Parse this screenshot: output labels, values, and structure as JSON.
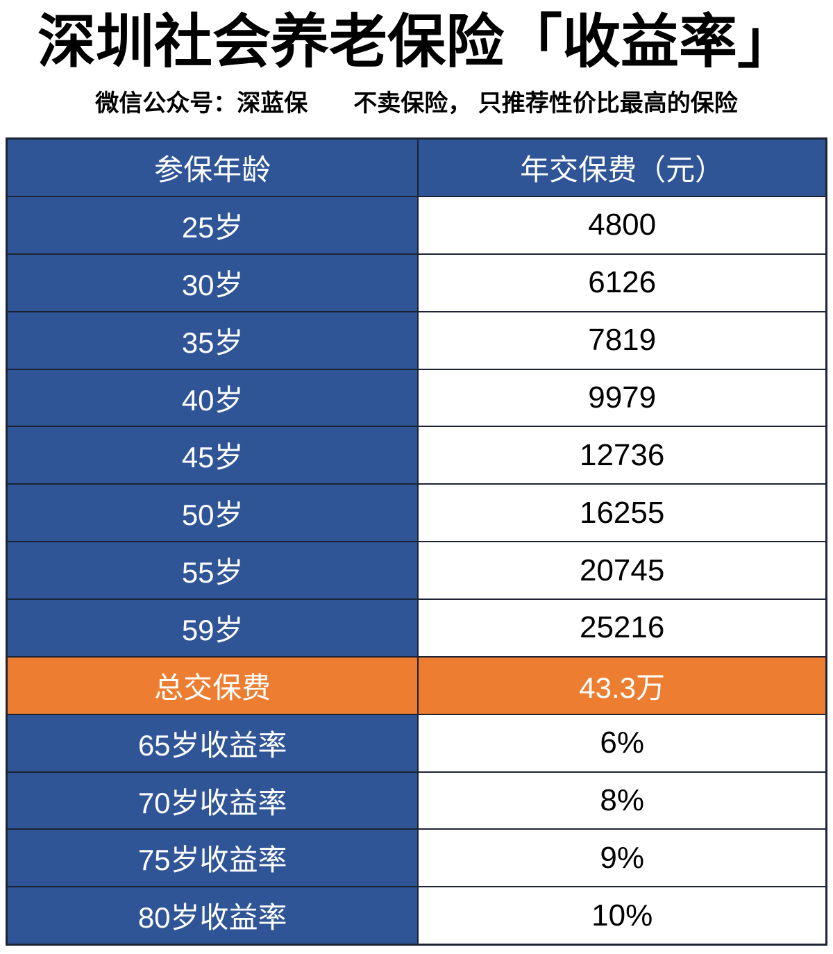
{
  "title": "深圳社会养老保险「收益率」",
  "subtitle": {
    "left": "微信公众号：深蓝保",
    "right": "不卖保险， 只推荐性价比最高的保险"
  },
  "colors": {
    "blue": "#2f5597",
    "orange": "#ed7d31",
    "border": "#1c2333"
  },
  "table": {
    "header": {
      "col1": "参保年龄",
      "col2": "年交保费（元）"
    },
    "rows": [
      {
        "label": "25岁",
        "value": "4800",
        "type": "data"
      },
      {
        "label": "30岁",
        "value": "6126",
        "type": "data"
      },
      {
        "label": "35岁",
        "value": "7819",
        "type": "data"
      },
      {
        "label": "40岁",
        "value": "9979",
        "type": "data"
      },
      {
        "label": "45岁",
        "value": "12736",
        "type": "data"
      },
      {
        "label": "50岁",
        "value": "16255",
        "type": "data"
      },
      {
        "label": "55岁",
        "value": "20745",
        "type": "data"
      },
      {
        "label": "59岁",
        "value": "25216",
        "type": "data"
      },
      {
        "label": "总交保费",
        "value": "43.3万",
        "type": "total"
      },
      {
        "label": "65岁收益率",
        "value": "6%",
        "type": "rate"
      },
      {
        "label": "70岁收益率",
        "value": "8%",
        "type": "rate"
      },
      {
        "label": "75岁收益率",
        "value": "9%",
        "type": "rate"
      },
      {
        "label": "80岁收益率",
        "value": "10%",
        "type": "rate"
      }
    ]
  },
  "chart_data": {
    "type": "table",
    "title": "深圳社会养老保险「收益率」",
    "columns": [
      "参保年龄",
      "年交保费（元）"
    ],
    "rows": [
      [
        "25岁",
        "4800"
      ],
      [
        "30岁",
        "6126"
      ],
      [
        "35岁",
        "7819"
      ],
      [
        "40岁",
        "9979"
      ],
      [
        "45岁",
        "12736"
      ],
      [
        "50岁",
        "16255"
      ],
      [
        "55岁",
        "20745"
      ],
      [
        "59岁",
        "25216"
      ],
      [
        "总交保费",
        "43.3万"
      ],
      [
        "65岁收益率",
        "6%"
      ],
      [
        "70岁收益率",
        "8%"
      ],
      [
        "75岁收益率",
        "9%"
      ],
      [
        "80岁收益率",
        "10%"
      ]
    ]
  }
}
